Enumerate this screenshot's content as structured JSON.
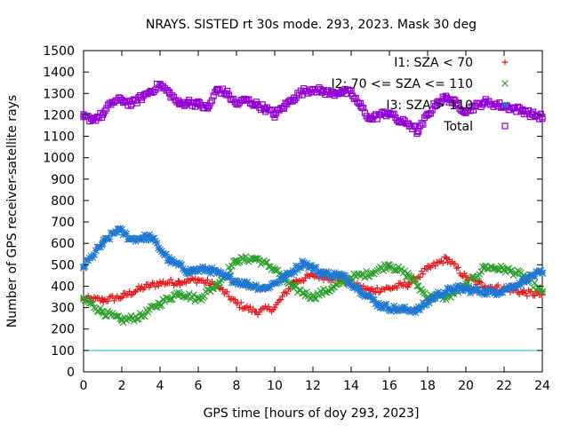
{
  "chart_data": {
    "type": "scatter",
    "title": "NRAYS. SISTED rt 30s mode. 293, 2023. Mask 30 deg",
    "xlabel": "GPS time [hours of doy 293, 2023]",
    "ylabel": "Number of GPS receiver-satellite rays",
    "xlim": [
      0,
      24
    ],
    "ylim": [
      0,
      1500
    ],
    "xticks": [
      0,
      2,
      4,
      6,
      8,
      10,
      12,
      14,
      16,
      18,
      20,
      22,
      24
    ],
    "yticks": [
      0,
      100,
      200,
      300,
      400,
      500,
      600,
      700,
      800,
      900,
      1000,
      1100,
      1200,
      1300,
      1400,
      1500
    ],
    "grid": false,
    "legend_position": "top-right",
    "reference_line": {
      "y": 100,
      "color": "#00c0d0"
    },
    "series": [
      {
        "name": "I1: SZA < 70",
        "marker": "+",
        "color": "#e41a1c",
        "x": [
          0,
          1,
          2,
          3,
          4,
          5,
          6,
          7,
          8,
          9,
          10,
          11,
          12,
          13,
          14,
          15,
          16,
          17,
          18,
          19,
          20,
          21,
          22,
          23,
          24
        ],
        "y": [
          340,
          335,
          350,
          390,
          415,
          420,
          430,
          400,
          320,
          280,
          300,
          420,
          450,
          440,
          410,
          380,
          390,
          410,
          480,
          530,
          440,
          400,
          390,
          370,
          360
        ]
      },
      {
        "name": "I2: 70 <= SZA <= 110",
        "marker": "x",
        "color": "#2ca02c",
        "x": [
          0,
          1,
          2,
          3,
          4,
          5,
          6,
          7,
          8,
          9,
          10,
          11,
          12,
          13,
          14,
          15,
          16,
          17,
          18,
          19,
          20,
          21,
          22,
          23,
          24
        ],
        "y": [
          340,
          280,
          240,
          260,
          320,
          370,
          340,
          410,
          520,
          530,
          480,
          390,
          350,
          390,
          440,
          460,
          500,
          450,
          350,
          350,
          400,
          490,
          480,
          450,
          370
        ]
      },
      {
        "name": "I3: SZA > 110",
        "marker": "*",
        "color": "#1f78d1",
        "x": [
          0,
          1,
          1.8,
          2.5,
          3.5,
          4.5,
          5.5,
          6.5,
          7.5,
          8.5,
          9.5,
          10.5,
          11.5,
          12.5,
          13.5,
          14.5,
          15.5,
          16.5,
          17.5,
          18.5,
          19.5,
          20.5,
          21.5,
          22.5,
          23.5,
          24
        ],
        "y": [
          490,
          600,
          665,
          620,
          630,
          520,
          470,
          480,
          440,
          410,
          390,
          440,
          510,
          460,
          450,
          380,
          310,
          290,
          290,
          360,
          390,
          380,
          370,
          400,
          450,
          460
        ]
      },
      {
        "name": "Total",
        "marker": "square",
        "color": "#9400d3",
        "x": [
          0,
          0.5,
          1,
          1.5,
          2,
          2.5,
          3,
          3.5,
          4,
          4.5,
          5,
          5.5,
          6,
          6.5,
          7,
          7.5,
          8,
          8.5,
          9,
          9.5,
          10,
          10.5,
          11,
          11.5,
          12,
          12.5,
          13,
          13.5,
          14,
          14.5,
          15,
          15.5,
          16,
          16.5,
          17,
          17.5,
          18,
          18.5,
          19,
          19.5,
          20,
          20.5,
          21,
          21.5,
          22,
          22.5,
          23,
          23.5,
          24
        ],
        "y": [
          1190,
          1180,
          1200,
          1260,
          1270,
          1250,
          1280,
          1310,
          1340,
          1300,
          1250,
          1260,
          1250,
          1230,
          1320,
          1300,
          1250,
          1270,
          1250,
          1230,
          1200,
          1240,
          1280,
          1310,
          1320,
          1310,
          1300,
          1310,
          1300,
          1240,
          1180,
          1200,
          1210,
          1170,
          1160,
          1120,
          1200,
          1260,
          1280,
          1250,
          1220,
          1240,
          1260,
          1250,
          1240,
          1230,
          1220,
          1200,
          1190
        ]
      }
    ]
  }
}
